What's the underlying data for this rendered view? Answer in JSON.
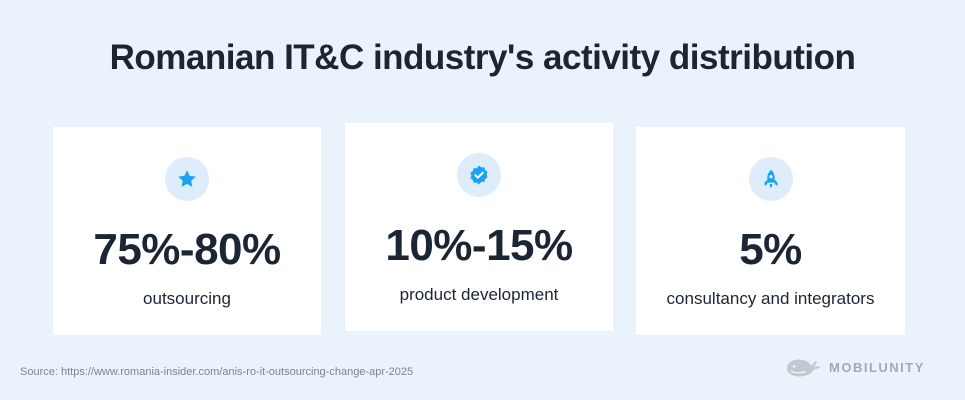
{
  "title": "Romanian IT&C industry's activity distribution",
  "cards": [
    {
      "icon": "star-icon",
      "value": "75%-80%",
      "label": "outsourcing"
    },
    {
      "icon": "verified-badge-icon",
      "value": "10%-15%",
      "label": "product development"
    },
    {
      "icon": "rocket-icon",
      "value": "5%",
      "label": "consultancy and integrators"
    }
  ],
  "source": "Source: https://www.romania-insider.com/anis-ro-it-outsourcing-change-apr-2025",
  "brand": {
    "name": "MOBILUNITY",
    "logo": "whale-logo-icon"
  },
  "colors": {
    "background": "#eaf2fc",
    "card": "#ffffff",
    "accent": "#1aa3f0",
    "icon_bg": "#deedfb",
    "text": "#1c2533",
    "muted": "#7a8595"
  }
}
